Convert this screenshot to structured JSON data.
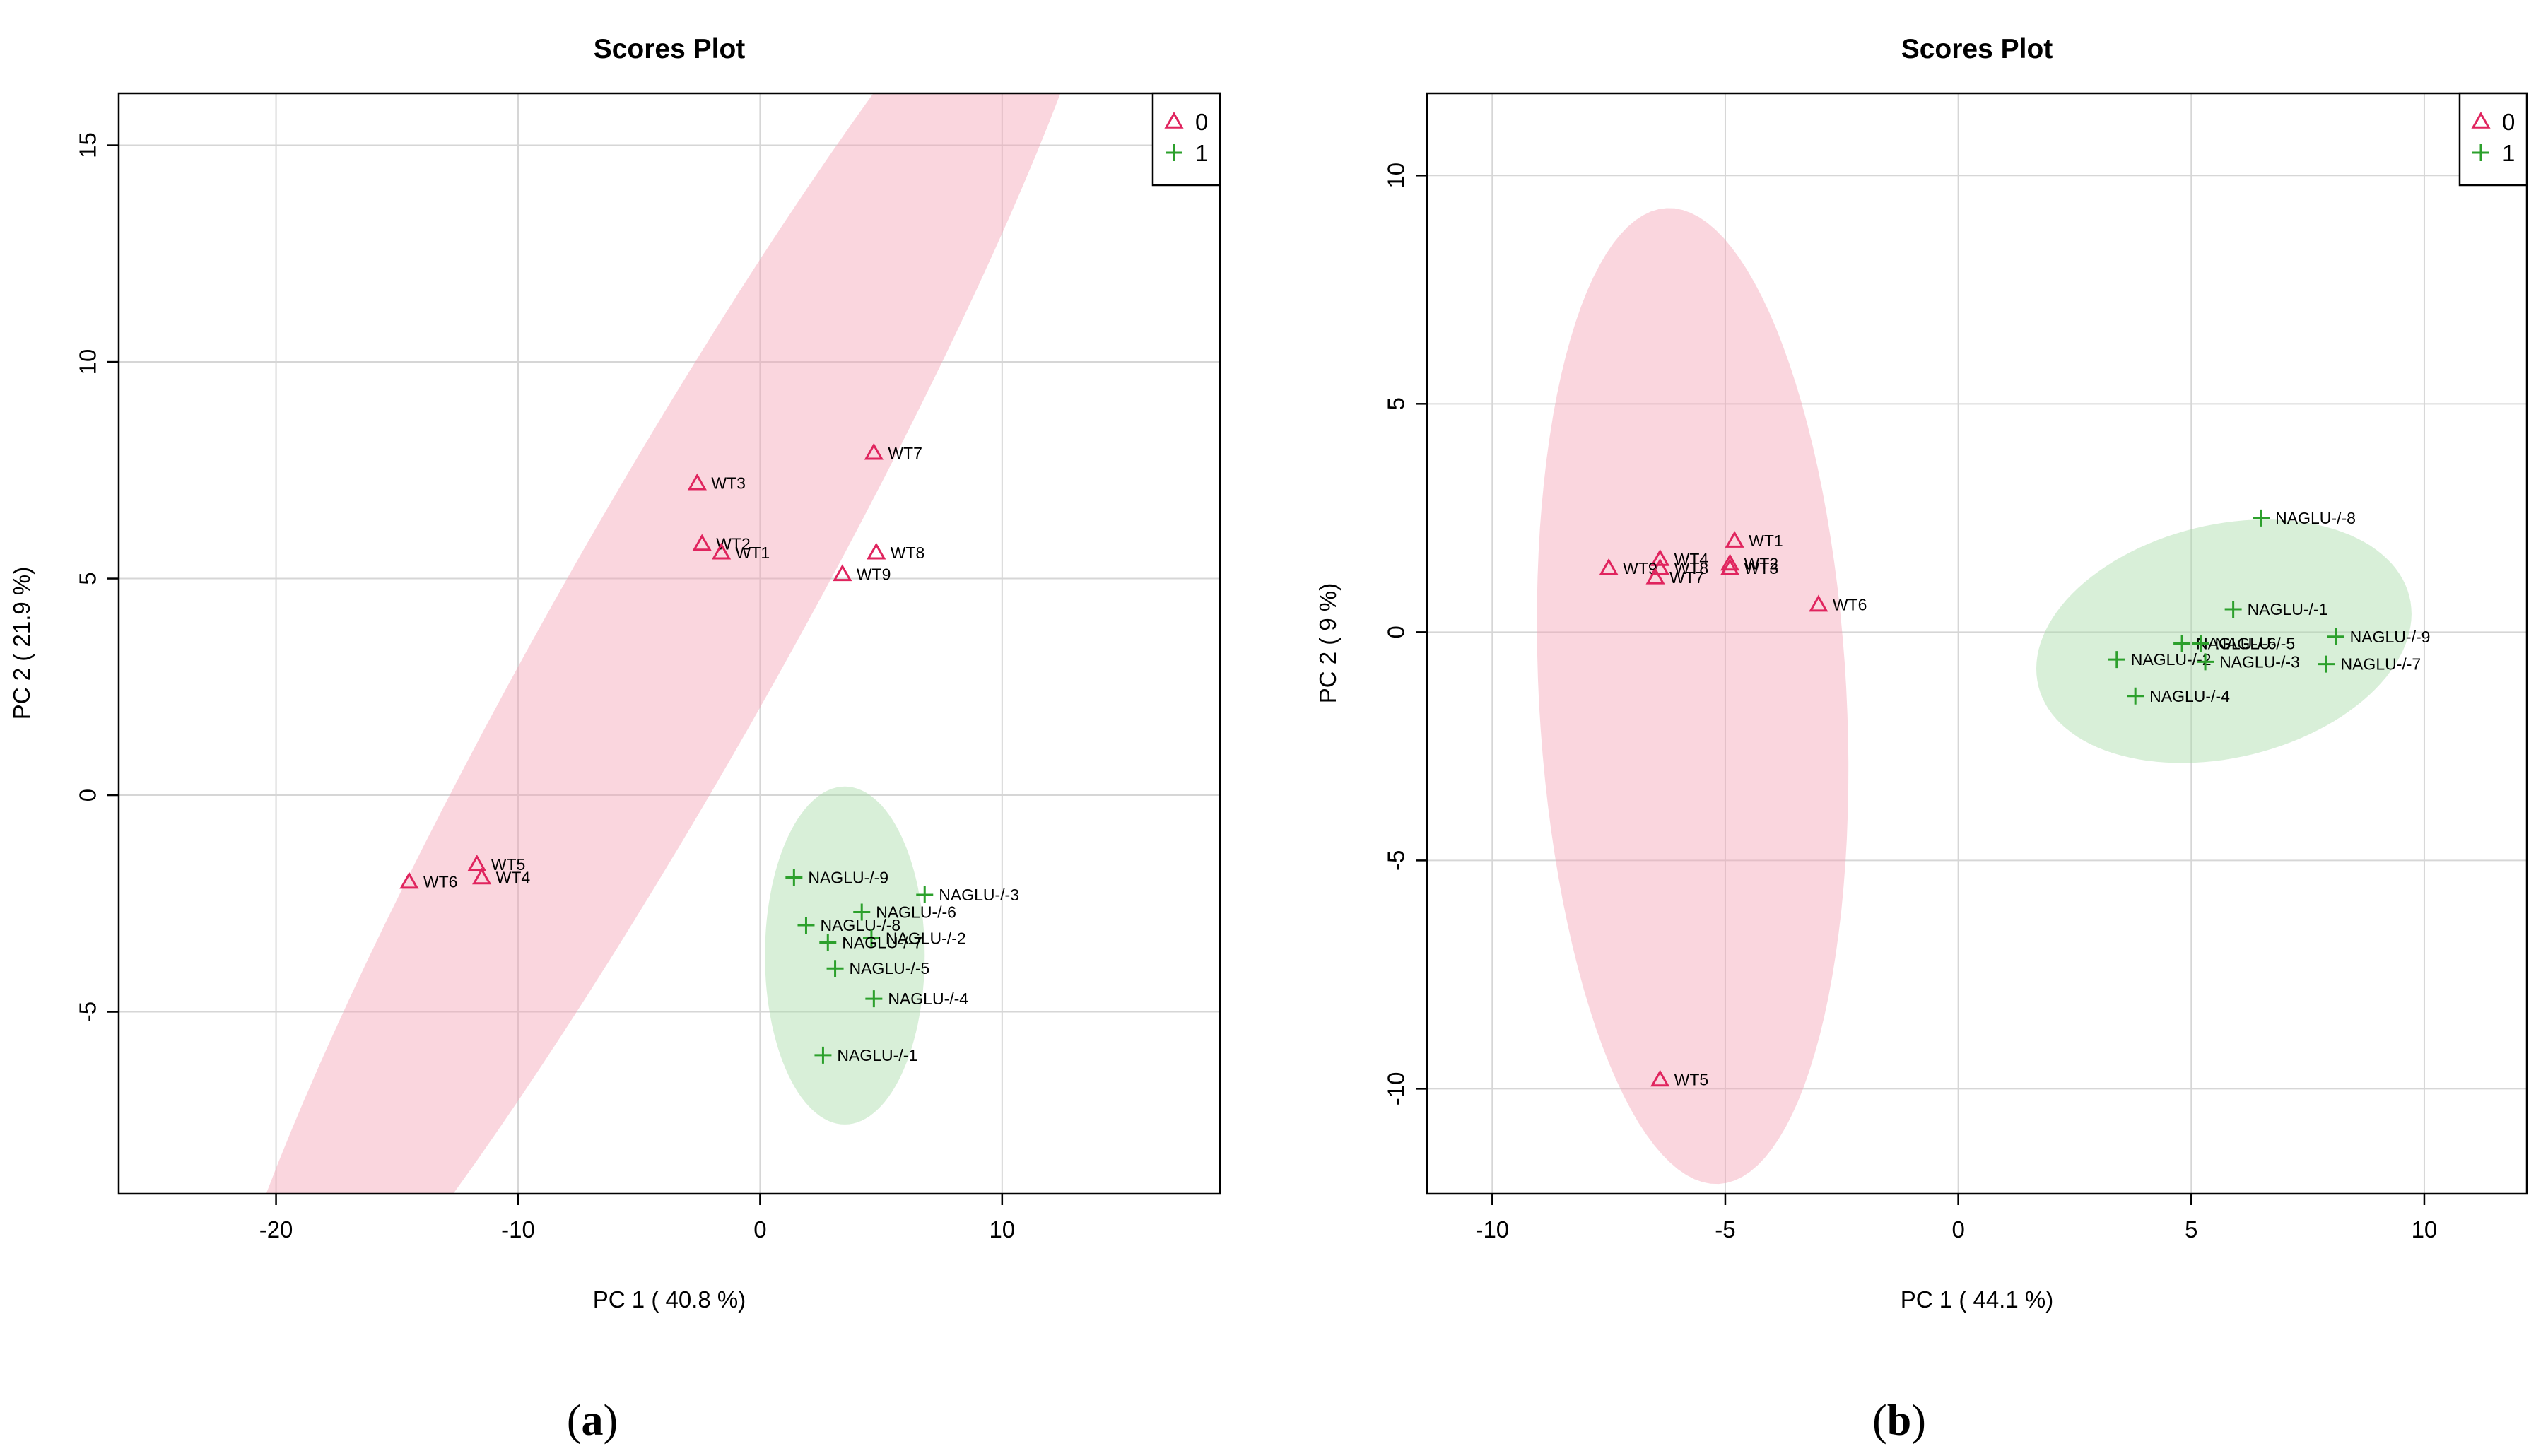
{
  "colors": {
    "group0": "#e0245e",
    "group1": "#2ca02c",
    "ellipse0": "#f4a3b6",
    "ellipse1": "#a9dca9"
  },
  "panels": [
    {
      "panel_label": "a",
      "chart_data": {
        "type": "scatter",
        "title": "Scores Plot",
        "xlabel": "PC 1 ( 40.8 %)",
        "ylabel": "PC 2 ( 21.9 %)",
        "xlim": [
          -26.5,
          19
        ],
        "ylim": [
          -9.2,
          16.2
        ],
        "xticks": [
          -20,
          -10,
          0,
          10
        ],
        "yticks": [
          -5,
          0,
          5,
          10,
          15
        ],
        "xtick_labels": [
          "-20",
          "-10",
          "0",
          "10"
        ],
        "ytick_labels": [
          "-5",
          "0",
          "5",
          "10",
          "15"
        ],
        "grid": true,
        "legend": {
          "placement": "top-right",
          "entries": [
            {
              "name": "0",
              "marker": "triangle"
            },
            {
              "name": "1",
              "marker": "plus"
            }
          ]
        },
        "ellipses": [
          {
            "group": "0",
            "cx": -4,
            "cy": 3.5,
            "rx": 25.5,
            "ry": 3.85,
            "angle_deg": 44
          },
          {
            "group": "1",
            "cx": 3.5,
            "cy": -3.7,
            "rx": 3.3,
            "ry": 3.9,
            "angle_deg": 0
          }
        ],
        "series": [
          {
            "name": "0",
            "marker": "triangle",
            "points": [
              {
                "label": "WT7",
                "x": 4.7,
                "y": 7.9
              },
              {
                "label": "WT3",
                "x": -2.6,
                "y": 7.2
              },
              {
                "label": "WT2",
                "x": -2.4,
                "y": 5.8
              },
              {
                "label": "WT1",
                "x": -1.6,
                "y": 5.6
              },
              {
                "label": "WT8",
                "x": 4.8,
                "y": 5.6
              },
              {
                "label": "WT9",
                "x": 3.4,
                "y": 5.1
              },
              {
                "label": "WT5",
                "x": -11.7,
                "y": -1.6
              },
              {
                "label": "WT6",
                "x": -14.5,
                "y": -2.0
              },
              {
                "label": "WT4",
                "x": -11.5,
                "y": -1.9
              }
            ]
          },
          {
            "name": "1",
            "marker": "plus",
            "points": [
              {
                "label": "NAGLU-/-9",
                "x": 1.4,
                "y": -1.9
              },
              {
                "label": "NAGLU-/-3",
                "x": 6.8,
                "y": -2.3
              },
              {
                "label": "NAGLU-/-6",
                "x": 4.2,
                "y": -2.7
              },
              {
                "label": "NAGLU-/-8",
                "x": 1.9,
                "y": -3.0
              },
              {
                "label": "NAGLU-/-2",
                "x": 4.6,
                "y": -3.3
              },
              {
                "label": "NAGLU-/-7",
                "x": 2.8,
                "y": -3.4
              },
              {
                "label": "NAGLU-/-5",
                "x": 3.1,
                "y": -4.0
              },
              {
                "label": "NAGLU-/-4",
                "x": 4.7,
                "y": -4.7
              },
              {
                "label": "NAGLU-/-1",
                "x": 2.6,
                "y": -6.0
              }
            ]
          }
        ]
      }
    },
    {
      "panel_label": "b",
      "chart_data": {
        "type": "scatter",
        "title": "Scores Plot",
        "xlabel": "PC 1 ( 44.1 %)",
        "ylabel": "PC 2 ( 9 %)",
        "xlim": [
          -11.4,
          12.2
        ],
        "ylim": [
          -12.3,
          11.8
        ],
        "xticks": [
          -10,
          -5,
          0,
          5,
          10
        ],
        "yticks": [
          -10,
          -5,
          0,
          5,
          10
        ],
        "xtick_labels": [
          "-10",
          "-5",
          "0",
          "5",
          "10"
        ],
        "ytick_labels": [
          "-10",
          "-5",
          "0",
          "5",
          "10"
        ],
        "grid": true,
        "legend": {
          "placement": "top-right",
          "entries": [
            {
              "name": "0",
              "marker": "triangle"
            },
            {
              "name": "1",
              "marker": "plus"
            }
          ]
        },
        "ellipses": [
          {
            "group": "0",
            "cx": -5.7,
            "cy": -1.4,
            "rx": 3.3,
            "ry": 10.7,
            "angle_deg": 3
          },
          {
            "group": "1",
            "cx": 5.7,
            "cy": -0.2,
            "rx": 4.1,
            "ry": 2.55,
            "angle_deg": 14
          }
        ],
        "series": [
          {
            "name": "0",
            "marker": "triangle",
            "points": [
              {
                "label": "WT1",
                "x": -4.8,
                "y": 2.0
              },
              {
                "label": "WT4",
                "x": -6.4,
                "y": 1.6
              },
              {
                "label": "WT2",
                "x": -4.9,
                "y": 1.5
              },
              {
                "label": "WT8",
                "x": -6.4,
                "y": 1.4
              },
              {
                "label": "WT9",
                "x": -7.5,
                "y": 1.4
              },
              {
                "label": "WT3",
                "x": -4.9,
                "y": 1.4
              },
              {
                "label": "WT7",
                "x": -6.5,
                "y": 1.2
              },
              {
                "label": "WT6",
                "x": -3.0,
                "y": 0.6
              },
              {
                "label": "WT5",
                "x": -6.4,
                "y": -9.8
              }
            ]
          },
          {
            "name": "1",
            "marker": "plus",
            "points": [
              {
                "label": "NAGLU-/-8",
                "x": 6.5,
                "y": 2.5
              },
              {
                "label": "NAGLU-/-1",
                "x": 5.9,
                "y": 0.5
              },
              {
                "label": "NAGLU-/-9",
                "x": 8.1,
                "y": -0.1
              },
              {
                "label": "NAGLU-/-6",
                "x": 4.8,
                "y": -0.25
              },
              {
                "label": "NAGLU-/-5",
                "x": 5.2,
                "y": -0.25
              },
              {
                "label": "NAGLU-/-2",
                "x": 3.4,
                "y": -0.6
              },
              {
                "label": "NAGLU-/-3",
                "x": 5.3,
                "y": -0.65
              },
              {
                "label": "NAGLU-/-7",
                "x": 7.9,
                "y": -0.7
              },
              {
                "label": "NAGLU-/-4",
                "x": 3.8,
                "y": -1.4
              }
            ]
          }
        ]
      }
    }
  ]
}
